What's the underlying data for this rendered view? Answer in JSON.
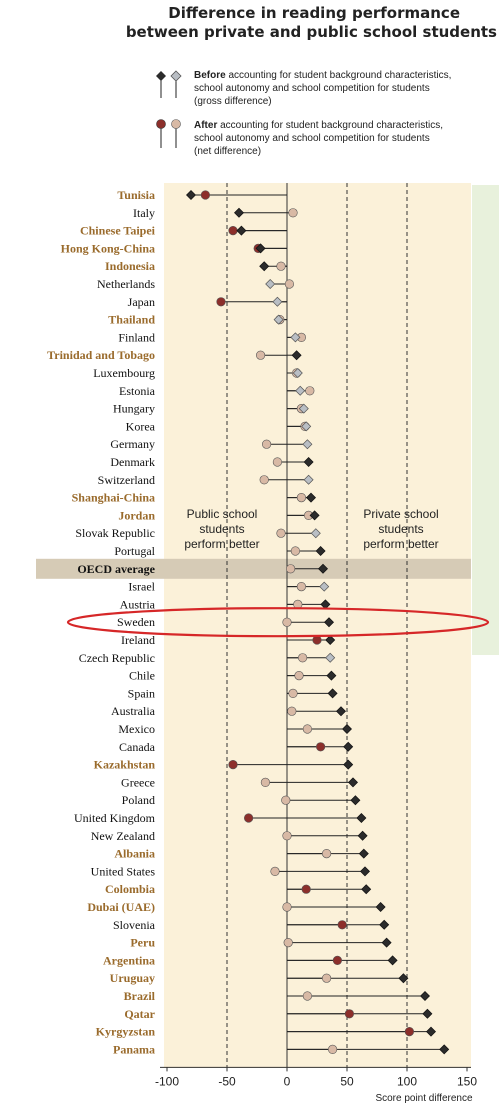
{
  "header": {
    "title_line1": "Difference in reading performance",
    "title_line2": "between private and public school students"
  },
  "legend": {
    "before": {
      "bold": "Before",
      "line1_rest": " accounting for student background characteristics,",
      "line2": "school autonomy and school competition for students",
      "line3": "(gross difference)"
    },
    "after": {
      "bold": "After",
      "line1_rest": " accounting for student background characteristics,",
      "line2": "school autonomy and school competition for students",
      "line3": "(net difference)"
    }
  },
  "annotations": {
    "public": [
      "Public school",
      "students",
      "perform better"
    ],
    "private": [
      "Private school",
      "students",
      "perform better"
    ]
  },
  "colors": {
    "panel_bg": "#fbf1d9",
    "oecd_band": "#d6cbb6",
    "partner_text": "#9a6b2c",
    "oecd_text": "#111111",
    "gross_significant": "#2b2b2b",
    "gross_not_significant": "#b9bec4",
    "net_significant": "#8c2f2b",
    "net_not_significant": "#d8b9a5",
    "highlight_ellipse": "#d62728",
    "side_strip": "#e8f1dc"
  },
  "chart_data": {
    "type": "dot",
    "xlabel": "Score point difference",
    "xlim": [
      -100,
      150
    ],
    "xticks": [
      -100,
      -50,
      0,
      50,
      100,
      150
    ],
    "reference_lines": [
      -50,
      50,
      100
    ],
    "highlighted": "Sweden",
    "series": [
      {
        "name": "Before accounting for student background characteristics, school autonomy and school competition for students (gross difference)"
      },
      {
        "name": "After accounting for student background characteristics, school autonomy and school competition for students (net difference)"
      }
    ],
    "rows": [
      {
        "label": "Tunisia",
        "group": "partner",
        "gross": -80,
        "net": -68,
        "gross_sig": true,
        "net_sig": true
      },
      {
        "label": "Italy",
        "group": "oecd",
        "gross": -40,
        "net": 5,
        "gross_sig": true,
        "net_sig": false
      },
      {
        "label": "Chinese Taipei",
        "group": "partner",
        "gross": -38,
        "net": -45,
        "gross_sig": true,
        "net_sig": true
      },
      {
        "label": "Hong Kong-China",
        "group": "partner",
        "gross": -22,
        "net": -24,
        "gross_sig": true,
        "net_sig": true
      },
      {
        "label": "Indonesia",
        "group": "partner",
        "gross": -19,
        "net": -5,
        "gross_sig": true,
        "net_sig": false
      },
      {
        "label": "Netherlands",
        "group": "oecd",
        "gross": -14,
        "net": 2,
        "gross_sig": false,
        "net_sig": false
      },
      {
        "label": "Japan",
        "group": "oecd",
        "gross": -8,
        "net": -55,
        "gross_sig": false,
        "net_sig": true
      },
      {
        "label": "Thailand",
        "group": "partner",
        "gross": -7,
        "net": -6,
        "gross_sig": false,
        "net_sig": false
      },
      {
        "label": "Finland",
        "group": "oecd",
        "gross": 7,
        "net": 12,
        "gross_sig": false,
        "net_sig": false
      },
      {
        "label": "Trinidad and Tobago",
        "group": "partner",
        "gross": 8,
        "net": -22,
        "gross_sig": true,
        "net_sig": false
      },
      {
        "label": "Luxembourg",
        "group": "oecd",
        "gross": 9,
        "net": 8,
        "gross_sig": false,
        "net_sig": false
      },
      {
        "label": "Estonia",
        "group": "oecd",
        "gross": 11,
        "net": 19,
        "gross_sig": false,
        "net_sig": false
      },
      {
        "label": "Hungary",
        "group": "oecd",
        "gross": 14,
        "net": 12,
        "gross_sig": false,
        "net_sig": false
      },
      {
        "label": "Korea",
        "group": "oecd",
        "gross": 16,
        "net": 15,
        "gross_sig": false,
        "net_sig": false
      },
      {
        "label": "Germany",
        "group": "oecd",
        "gross": 17,
        "net": -17,
        "gross_sig": false,
        "net_sig": false
      },
      {
        "label": "Denmark",
        "group": "oecd",
        "gross": 18,
        "net": -8,
        "gross_sig": true,
        "net_sig": false
      },
      {
        "label": "Switzerland",
        "group": "oecd",
        "gross": 18,
        "net": -19,
        "gross_sig": false,
        "net_sig": false
      },
      {
        "label": "Shanghai-China",
        "group": "partner",
        "gross": 20,
        "net": 12,
        "gross_sig": true,
        "net_sig": false
      },
      {
        "label": "Jordan",
        "group": "partner",
        "gross": 23,
        "net": 18,
        "gross_sig": true,
        "net_sig": false
      },
      {
        "label": "Slovak Republic",
        "group": "oecd",
        "gross": 24,
        "net": -5,
        "gross_sig": false,
        "net_sig": false
      },
      {
        "label": "Portugal",
        "group": "oecd",
        "gross": 28,
        "net": 7,
        "gross_sig": true,
        "net_sig": false
      },
      {
        "label": "OECD average",
        "group": "average",
        "gross": 30,
        "net": 3,
        "gross_sig": true,
        "net_sig": false
      },
      {
        "label": "Israel",
        "group": "oecd",
        "gross": 31,
        "net": 12,
        "gross_sig": false,
        "net_sig": false
      },
      {
        "label": "Austria",
        "group": "oecd",
        "gross": 32,
        "net": 9,
        "gross_sig": true,
        "net_sig": false
      },
      {
        "label": "Sweden",
        "group": "oecd",
        "gross": 35,
        "net": 0,
        "gross_sig": true,
        "net_sig": false
      },
      {
        "label": "Ireland",
        "group": "oecd",
        "gross": 36,
        "net": 25,
        "gross_sig": true,
        "net_sig": true
      },
      {
        "label": "Czech Republic",
        "group": "oecd",
        "gross": 36,
        "net": 13,
        "gross_sig": false,
        "net_sig": false
      },
      {
        "label": "Chile",
        "group": "oecd",
        "gross": 37,
        "net": 10,
        "gross_sig": true,
        "net_sig": false
      },
      {
        "label": "Spain",
        "group": "oecd",
        "gross": 38,
        "net": 5,
        "gross_sig": true,
        "net_sig": false
      },
      {
        "label": "Australia",
        "group": "oecd",
        "gross": 45,
        "net": 4,
        "gross_sig": true,
        "net_sig": false
      },
      {
        "label": "Mexico",
        "group": "oecd",
        "gross": 50,
        "net": 17,
        "gross_sig": true,
        "net_sig": false
      },
      {
        "label": "Canada",
        "group": "oecd",
        "gross": 51,
        "net": 28,
        "gross_sig": true,
        "net_sig": true
      },
      {
        "label": "Kazakhstan",
        "group": "partner",
        "gross": 51,
        "net": -45,
        "gross_sig": true,
        "net_sig": true
      },
      {
        "label": "Greece",
        "group": "oecd",
        "gross": 55,
        "net": -18,
        "gross_sig": true,
        "net_sig": false
      },
      {
        "label": "Poland",
        "group": "oecd",
        "gross": 57,
        "net": -1,
        "gross_sig": true,
        "net_sig": false
      },
      {
        "label": "United Kingdom",
        "group": "oecd",
        "gross": 62,
        "net": -32,
        "gross_sig": true,
        "net_sig": true
      },
      {
        "label": "New Zealand",
        "group": "oecd",
        "gross": 63,
        "net": 0,
        "gross_sig": true,
        "net_sig": false
      },
      {
        "label": "Albania",
        "group": "partner",
        "gross": 64,
        "net": 33,
        "gross_sig": true,
        "net_sig": false
      },
      {
        "label": "United States",
        "group": "oecd",
        "gross": 65,
        "net": -10,
        "gross_sig": true,
        "net_sig": false
      },
      {
        "label": "Colombia",
        "group": "partner",
        "gross": 66,
        "net": 16,
        "gross_sig": true,
        "net_sig": true
      },
      {
        "label": "Dubai (UAE)",
        "group": "partner",
        "gross": 78,
        "net": 0,
        "gross_sig": true,
        "net_sig": false
      },
      {
        "label": "Slovenia",
        "group": "oecd",
        "gross": 81,
        "net": 46,
        "gross_sig": true,
        "net_sig": true
      },
      {
        "label": "Peru",
        "group": "partner",
        "gross": 83,
        "net": 1,
        "gross_sig": true,
        "net_sig": false
      },
      {
        "label": "Argentina",
        "group": "partner",
        "gross": 88,
        "net": 42,
        "gross_sig": true,
        "net_sig": true
      },
      {
        "label": "Uruguay",
        "group": "partner",
        "gross": 97,
        "net": 33,
        "gross_sig": true,
        "net_sig": false
      },
      {
        "label": "Brazil",
        "group": "partner",
        "gross": 115,
        "net": 17,
        "gross_sig": true,
        "net_sig": false
      },
      {
        "label": "Qatar",
        "group": "partner",
        "gross": 117,
        "net": 52,
        "gross_sig": true,
        "net_sig": true
      },
      {
        "label": "Kyrgyzstan",
        "group": "partner",
        "gross": 120,
        "net": 102,
        "gross_sig": true,
        "net_sig": true
      },
      {
        "label": "Panama",
        "group": "partner",
        "gross": 131,
        "net": 38,
        "gross_sig": true,
        "net_sig": false
      }
    ]
  }
}
